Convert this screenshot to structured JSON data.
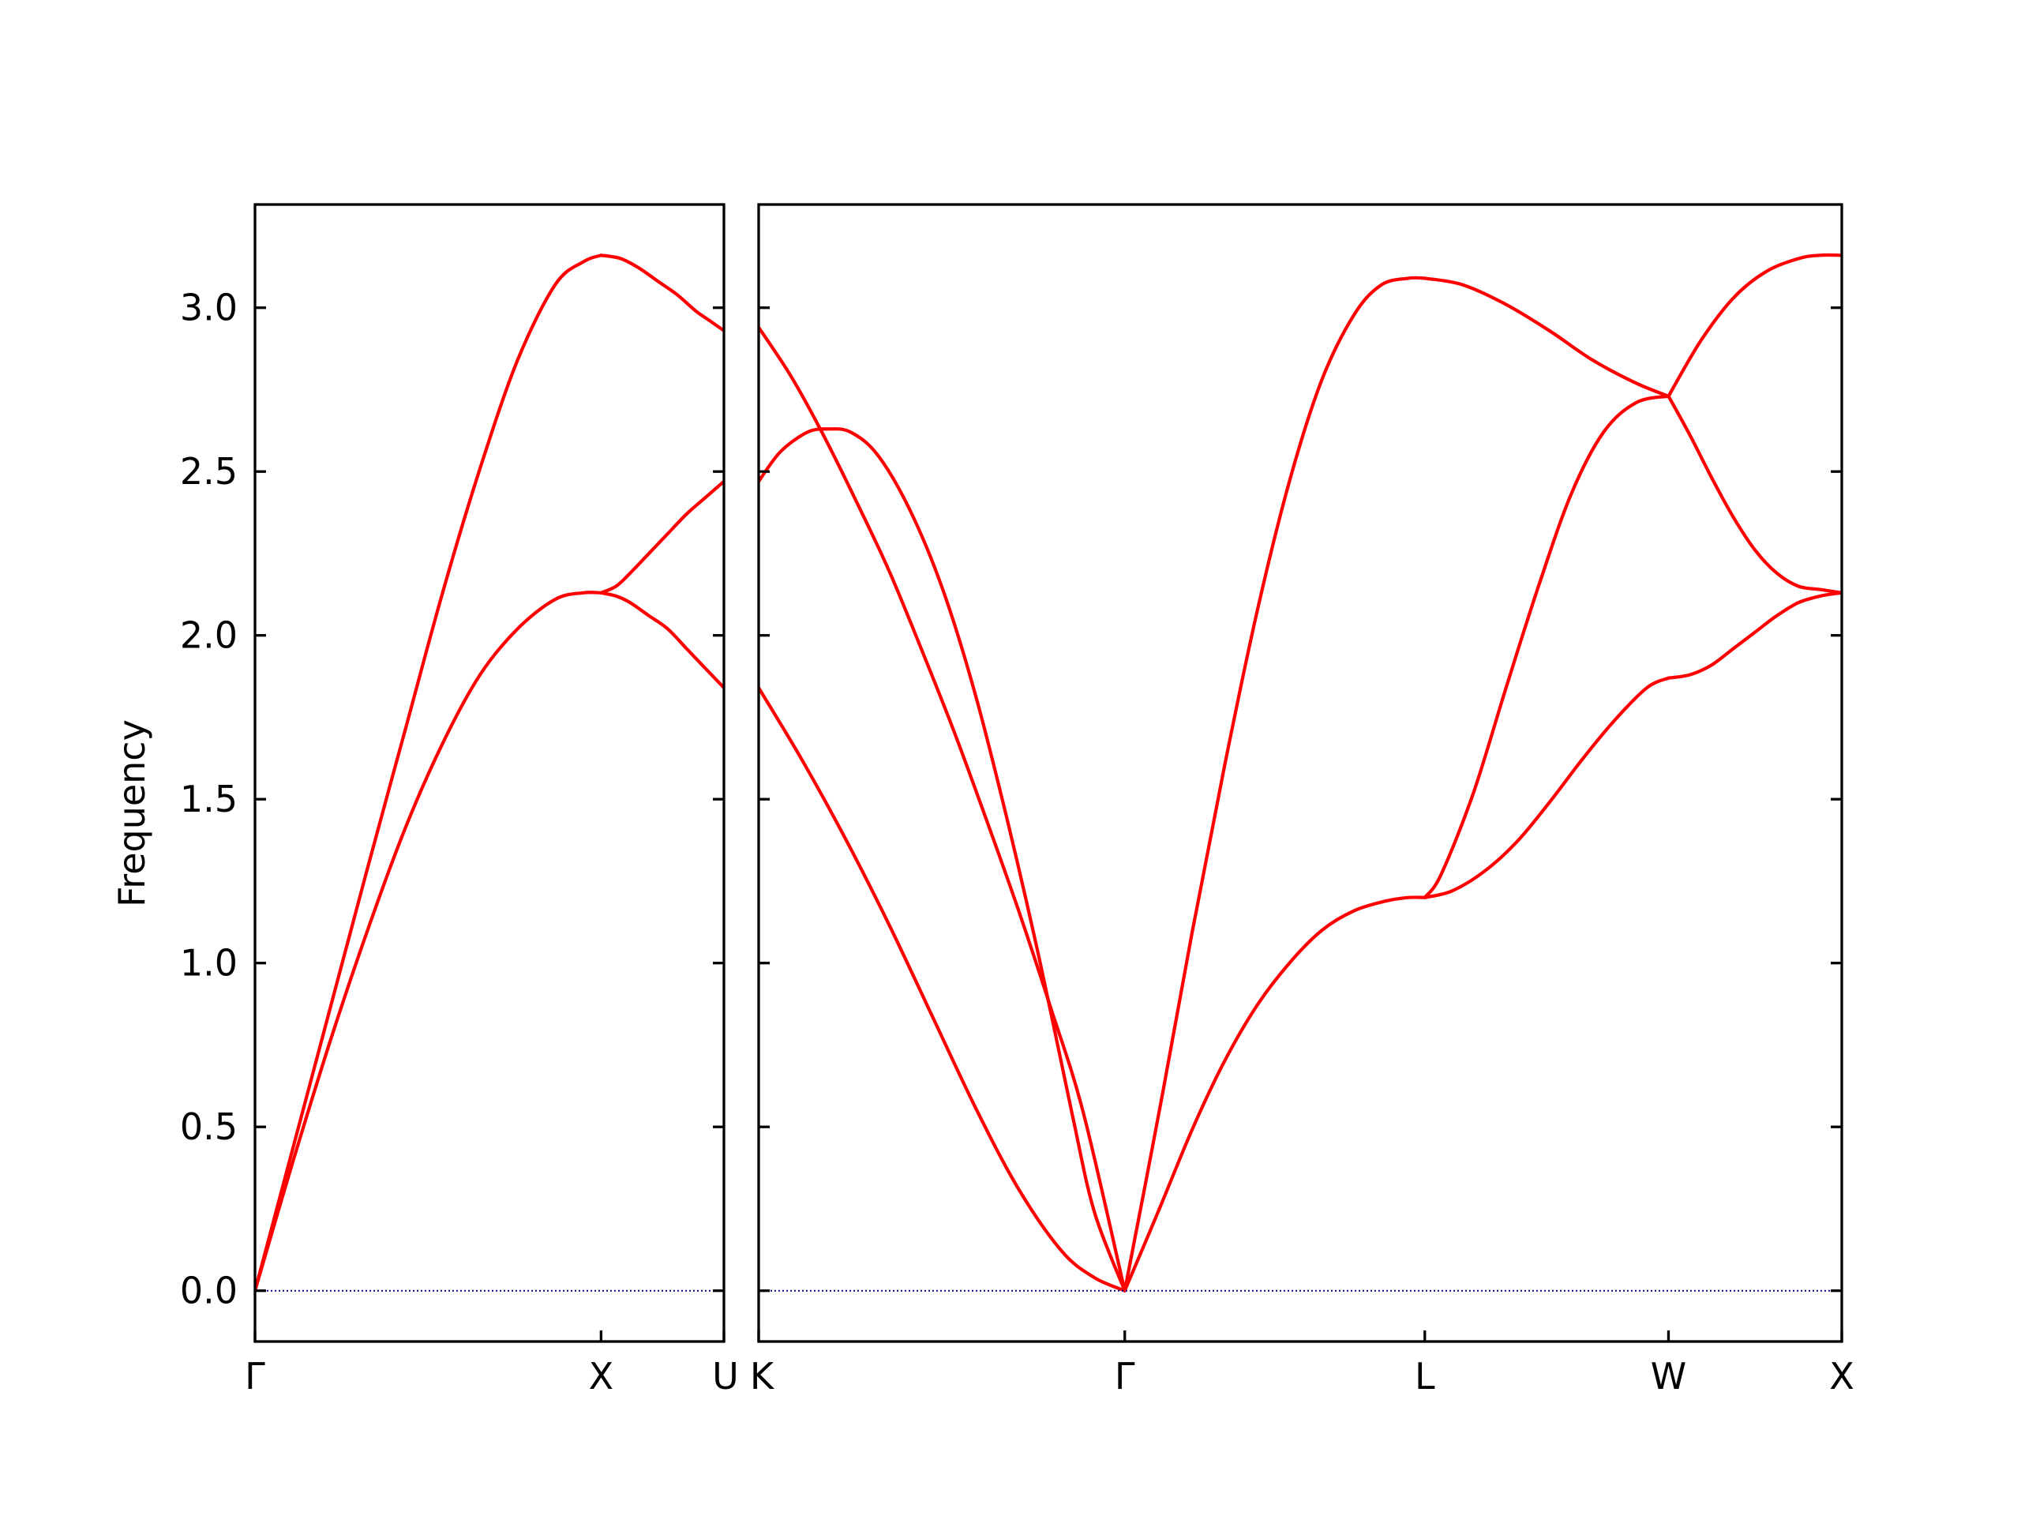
{
  "chart_data": {
    "type": "line",
    "ylabel": "Frequency",
    "ylim": [
      -0.155,
      3.315
    ],
    "yticks": [
      "0.0",
      "0.5",
      "1.0",
      "1.5",
      "2.0",
      "2.5",
      "3.0"
    ],
    "colors": {
      "bands": "#ff0000",
      "zero_line": "#00008b",
      "axes": "#000000"
    },
    "panels": [
      {
        "xlim": [
          0,
          1
        ],
        "xticks": [
          {
            "x": 0,
            "label": "Γ"
          },
          {
            "x": 0.738,
            "label": "X"
          },
          {
            "x": 1,
            "label": "U"
          }
        ],
        "series": [
          {
            "x": [
              0,
              0.08,
              0.16,
              0.24,
              0.32,
              0.4,
              0.48,
              0.56,
              0.64,
              0.7,
              0.738
            ],
            "y": [
              0,
              0.43,
              0.86,
              1.29,
              1.71,
              2.13,
              2.51,
              2.84,
              3.07,
              3.14,
              3.16
            ]
          },
          {
            "x": [
              0,
              0.08,
              0.16,
              0.24,
              0.32,
              0.4,
              0.48,
              0.56,
              0.64,
              0.7,
              0.738
            ],
            "y": [
              0,
              0.39,
              0.76,
              1.1,
              1.41,
              1.67,
              1.88,
              2.02,
              2.11,
              2.13,
              2.13
            ]
          },
          {
            "x": [
              0.738,
              0.78,
              0.82,
              0.86,
              0.9,
              0.94,
              0.97,
              1.0
            ],
            "y": [
              3.16,
              3.15,
              3.12,
              3.08,
              3.04,
              2.99,
              2.96,
              2.93
            ]
          },
          {
            "x": [
              0.738,
              0.77,
              0.8,
              0.84,
              0.88,
              0.92,
              0.96,
              1.0
            ],
            "y": [
              2.13,
              2.15,
              2.19,
              2.25,
              2.31,
              2.37,
              2.42,
              2.47
            ]
          },
          {
            "x": [
              0.738,
              0.77,
              0.8,
              0.84,
              0.88,
              0.92,
              0.96,
              1.0
            ],
            "y": [
              2.13,
              2.12,
              2.1,
              2.06,
              2.02,
              1.96,
              1.9,
              1.84
            ]
          },
          {
            "x": [
              0,
              1
            ],
            "y": [
              0,
              0
            ],
            "zero": true
          }
        ]
      },
      {
        "xlim": [
          0,
          1
        ],
        "xticks": [
          {
            "x": 0,
            "label": "K"
          },
          {
            "x": 0.338,
            "label": "Γ"
          },
          {
            "x": 0.615,
            "label": "L"
          },
          {
            "x": 0.84,
            "label": "W"
          },
          {
            "x": 1,
            "label": "X"
          }
        ],
        "series": [
          {
            "x": [
              0,
              0.03,
              0.06,
              0.09,
              0.12,
              0.15,
              0.18,
              0.21,
              0.24,
              0.27,
              0.3,
              0.338
            ],
            "y": [
              2.94,
              2.79,
              2.61,
              2.41,
              2.2,
              1.96,
              1.71,
              1.44,
              1.16,
              0.86,
              0.54,
              0
            ]
          },
          {
            "x": [
              0,
              0.02,
              0.045,
              0.065,
              0.085,
              0.11,
              0.14,
              0.17,
              0.2,
              0.23,
              0.26,
              0.29,
              0.31,
              0.338
            ],
            "y": [
              2.47,
              2.56,
              2.62,
              2.63,
              2.62,
              2.55,
              2.38,
              2.14,
              1.82,
              1.43,
              1.0,
              0.53,
              0.24,
              0
            ]
          },
          {
            "x": [
              0,
              0.04,
              0.08,
              0.12,
              0.16,
              0.2,
              0.24,
              0.28,
              0.31,
              0.338
            ],
            "y": [
              1.84,
              1.62,
              1.38,
              1.12,
              0.84,
              0.56,
              0.31,
              0.12,
              0.04,
              0
            ]
          },
          {
            "x": [
              0.338,
              0.37,
              0.4,
              0.43,
              0.46,
              0.49,
              0.52,
              0.55,
              0.575,
              0.6,
              0.615
            ],
            "y": [
              0,
              0.55,
              1.09,
              1.6,
              2.07,
              2.47,
              2.78,
              2.98,
              3.07,
              3.09,
              3.09
            ]
          },
          {
            "x": [
              0.338,
              0.37,
              0.4,
              0.43,
              0.46,
              0.49,
              0.52,
              0.55,
              0.58,
              0.6,
              0.615
            ],
            "y": [
              0,
              0.25,
              0.49,
              0.7,
              0.87,
              1.0,
              1.1,
              1.16,
              1.19,
              1.2,
              1.2
            ]
          },
          {
            "x": [
              0.615,
              0.65,
              0.69,
              0.73,
              0.77,
              0.81,
              0.84
            ],
            "y": [
              3.09,
              3.07,
              3.01,
              2.93,
              2.84,
              2.77,
              2.73
            ]
          },
          {
            "x": [
              0.615,
              0.63,
              0.66,
              0.69,
              0.72,
              0.75,
              0.78,
              0.81,
              0.84
            ],
            "y": [
              1.2,
              1.27,
              1.52,
              1.84,
              2.15,
              2.43,
              2.62,
              2.71,
              2.73
            ]
          },
          {
            "x": [
              0.615,
              0.64,
              0.67,
              0.7,
              0.73,
              0.76,
              0.79,
              0.82,
              0.84
            ],
            "y": [
              1.2,
              1.22,
              1.28,
              1.37,
              1.49,
              1.62,
              1.74,
              1.84,
              1.87
            ]
          },
          {
            "x": [
              0.84,
              0.87,
              0.9,
              0.93,
              0.96,
              0.98,
              1.0
            ],
            "y": [
              2.73,
              2.9,
              3.03,
              3.11,
              3.15,
              3.16,
              3.16
            ]
          },
          {
            "x": [
              0.84,
              0.86,
              0.88,
              0.9,
              0.92,
              0.94,
              0.96,
              0.98,
              1.0
            ],
            "y": [
              2.73,
              2.61,
              2.48,
              2.36,
              2.26,
              2.19,
              2.15,
              2.14,
              2.13
            ]
          },
          {
            "x": [
              0.84,
              0.86,
              0.88,
              0.9,
              0.92,
              0.94,
              0.96,
              0.98,
              1.0
            ],
            "y": [
              1.87,
              1.88,
              1.91,
              1.96,
              2.01,
              2.06,
              2.1,
              2.12,
              2.13
            ]
          },
          {
            "x": [
              0,
              1
            ],
            "y": [
              0,
              0
            ],
            "zero": true
          }
        ]
      }
    ]
  }
}
